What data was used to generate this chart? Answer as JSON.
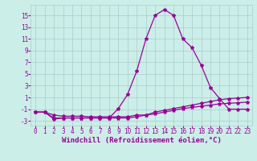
{
  "x": [
    0,
    1,
    2,
    3,
    4,
    5,
    6,
    7,
    8,
    9,
    10,
    11,
    12,
    13,
    14,
    15,
    16,
    17,
    18,
    19,
    20,
    21,
    22,
    23
  ],
  "line1": [
    -1.5,
    -1.5,
    -2.7,
    -2.5,
    -2.5,
    -2.5,
    -2.5,
    -2.5,
    -2.5,
    -0.9,
    1.5,
    5.5,
    11,
    15,
    16,
    15,
    11,
    9.5,
    6.5,
    2.7,
    0.8,
    -1,
    -1,
    -1
  ],
  "line2": [
    -1.5,
    -1.5,
    -2.0,
    -2.2,
    -2.2,
    -2.2,
    -2.3,
    -2.3,
    -2.3,
    -2.3,
    -2.3,
    -2.0,
    -2.0,
    -1.5,
    -1.2,
    -0.9,
    -0.6,
    -0.3,
    0.0,
    0.3,
    0.6,
    0.8,
    0.9,
    1.0
  ],
  "line3": [
    -1.5,
    -1.5,
    -2.5,
    -2.5,
    -2.5,
    -2.5,
    -2.5,
    -2.5,
    -2.5,
    -2.5,
    -2.5,
    -2.3,
    -2.0,
    -1.8,
    -1.5,
    -1.2,
    -0.9,
    -0.7,
    -0.5,
    -0.3,
    -0.1,
    0.0,
    0.1,
    0.2
  ],
  "line_color": "#990099",
  "bg_color": "#cceee8",
  "grid_color": "#aacccc",
  "yticks": [
    -3,
    -1,
    1,
    3,
    5,
    7,
    9,
    11,
    13,
    15
  ],
  "ylim": [
    -3.8,
    16.8
  ],
  "xlim": [
    -0.5,
    23.5
  ],
  "xlabel": "Windchill (Refroidissement éolien,°C)",
  "xlabel_fontsize": 6.5,
  "tick_fontsize": 5.5,
  "marker_size": 3,
  "linewidth": 0.9
}
